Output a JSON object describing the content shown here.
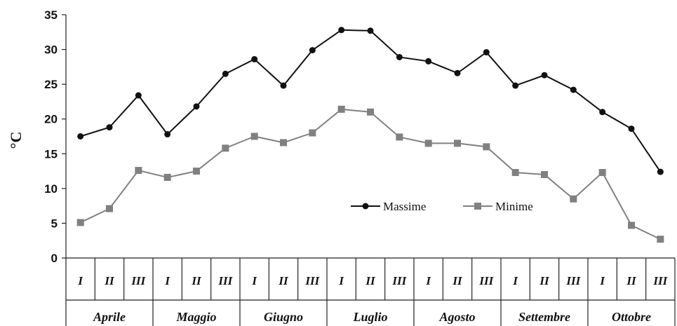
{
  "chart_data": {
    "type": "line",
    "ylabel": "°C",
    "ylim": [
      0,
      35
    ],
    "yticks": [
      "0",
      "5",
      "10",
      "15",
      "20",
      "25",
      "30",
      "35"
    ],
    "categories": [
      "I",
      "II",
      "III",
      "I",
      "II",
      "III",
      "I",
      "II",
      "III",
      "I",
      "II",
      "III",
      "I",
      "II",
      "III",
      "I",
      "II",
      "III",
      "I",
      "II",
      "III"
    ],
    "groups": [
      "Aprile",
      "Maggio",
      "Giugno",
      "Luglio",
      "Agosto",
      "Settembre",
      "Ottobre"
    ],
    "series": [
      {
        "name": "Massime",
        "color": "#111111",
        "marker": "circle",
        "values": [
          17.5,
          18.8,
          23.4,
          17.8,
          21.8,
          26.5,
          28.6,
          24.8,
          29.9,
          32.8,
          32.7,
          28.9,
          28.3,
          26.6,
          29.6,
          24.8,
          26.3,
          24.2,
          21.0,
          18.6,
          12.4
        ]
      },
      {
        "name": "Minime",
        "color": "#808080",
        "marker": "square",
        "values": [
          5.1,
          7.1,
          12.6,
          11.6,
          12.5,
          15.8,
          17.5,
          16.6,
          18.0,
          21.4,
          21.0,
          17.4,
          16.5,
          16.5,
          16.0,
          12.3,
          12.0,
          8.5,
          12.3,
          4.7,
          2.7
        ]
      }
    ],
    "legend": "center-right",
    "grid": false
  }
}
